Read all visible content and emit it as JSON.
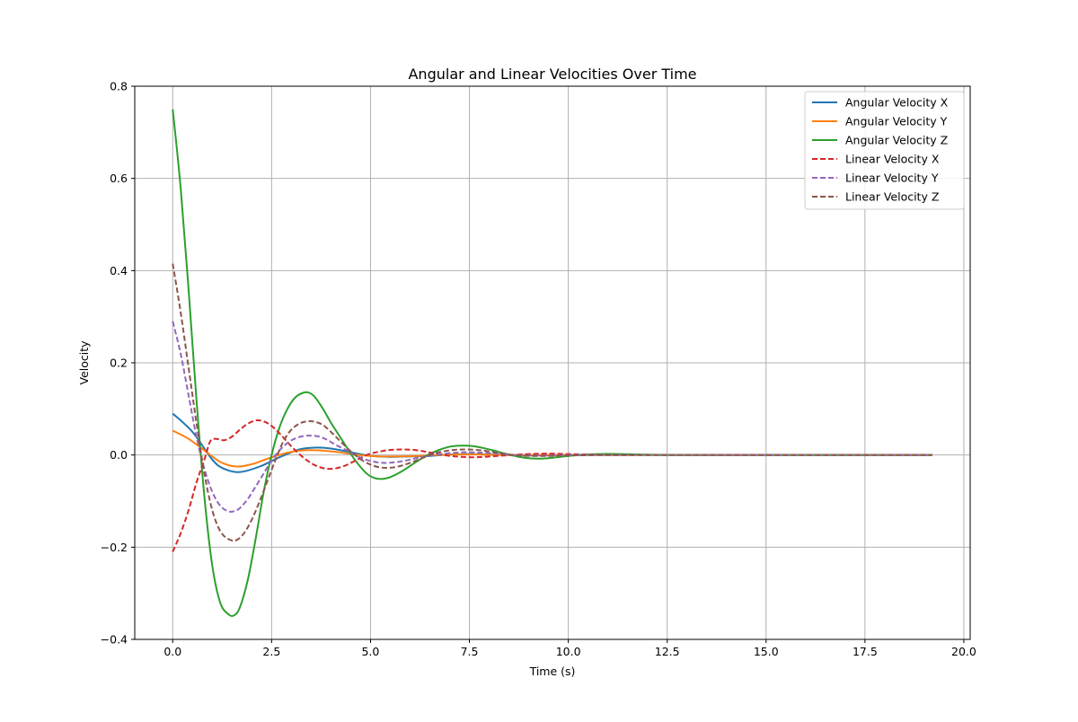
{
  "chart_data": {
    "type": "line",
    "title": "Angular and Linear Velocities Over Time",
    "xlabel": "Time (s)",
    "ylabel": "Velocity",
    "xlim": [
      -0.96,
      20.16
    ],
    "ylim": [
      -0.4,
      0.8
    ],
    "x_ticks": [
      0.0,
      2.5,
      5.0,
      7.5,
      10.0,
      12.5,
      15.0,
      17.5,
      20.0
    ],
    "x_tick_labels": [
      "0.0",
      "2.5",
      "5.0",
      "7.5",
      "10.0",
      "12.5",
      "15.0",
      "17.5",
      "20.0"
    ],
    "y_ticks": [
      -0.4,
      -0.2,
      0.0,
      0.2,
      0.4,
      0.6,
      0.8
    ],
    "y_tick_labels": [
      "−0.4",
      "−0.2",
      "0.0",
      "0.2",
      "0.4",
      "0.6",
      "0.8"
    ],
    "grid": true,
    "legend_position": "top-right",
    "series": [
      {
        "name": "Angular Velocity X",
        "color": "#1f77b4",
        "dash": "solid",
        "x": [
          0,
          0.5,
          1.0,
          1.3,
          1.7,
          2.2,
          2.7,
          3.2,
          3.6,
          4.0,
          4.5,
          5.0,
          5.5,
          6.0,
          6.5,
          7.0,
          7.5,
          8.0,
          8.5,
          9.0,
          10.0,
          11.0,
          12.0,
          14.0,
          16.0,
          19.2
        ],
        "y": [
          0.09,
          0.05,
          -0.01,
          -0.03,
          -0.037,
          -0.025,
          -0.005,
          0.012,
          0.016,
          0.014,
          0.006,
          -0.002,
          -0.004,
          -0.003,
          -0.002,
          0.001,
          0.002,
          0.001,
          0.0,
          -0.001,
          0.0,
          0.0,
          0.0,
          0.0,
          0.0,
          0.0
        ]
      },
      {
        "name": "Angular Velocity Y",
        "color": "#ff7f0e",
        "dash": "solid",
        "x": [
          0,
          0.4,
          0.8,
          1.2,
          1.6,
          2.0,
          2.4,
          2.9,
          3.3,
          3.7,
          4.2,
          4.7,
          5.2,
          5.7,
          6.2,
          6.7,
          7.2,
          7.7,
          8.2,
          9.0,
          10.0,
          12.0,
          19.2
        ],
        "y": [
          0.053,
          0.035,
          0.01,
          -0.015,
          -0.025,
          -0.02,
          -0.008,
          0.005,
          0.01,
          0.01,
          0.006,
          0.0,
          -0.003,
          -0.003,
          -0.002,
          0.0,
          0.001,
          0.001,
          0.0,
          0.0,
          0.0,
          0.0,
          0.0
        ]
      },
      {
        "name": "Angular Velocity Z",
        "color": "#2ca02c",
        "dash": "solid",
        "x": [
          0,
          0.2,
          0.4,
          0.6,
          0.8,
          1.0,
          1.2,
          1.4,
          1.55,
          1.7,
          1.9,
          2.1,
          2.3,
          2.5,
          2.7,
          2.9,
          3.1,
          3.3,
          3.45,
          3.6,
          3.8,
          4.0,
          4.3,
          4.6,
          4.9,
          5.1,
          5.3,
          5.5,
          5.8,
          6.1,
          6.4,
          6.7,
          7.0,
          7.2,
          7.5,
          7.8,
          8.1,
          8.4,
          8.7,
          9.0,
          9.3,
          9.6,
          9.9,
          10.3,
          10.8,
          11.3,
          11.8,
          12.5,
          14.0,
          16.0,
          19.2
        ],
        "y": [
          0.75,
          0.58,
          0.36,
          0.12,
          -0.09,
          -0.24,
          -0.32,
          -0.345,
          -0.348,
          -0.33,
          -0.27,
          -0.18,
          -0.08,
          0.0,
          0.06,
          0.1,
          0.125,
          0.135,
          0.135,
          0.125,
          0.1,
          0.07,
          0.03,
          -0.01,
          -0.04,
          -0.05,
          -0.052,
          -0.048,
          -0.035,
          -0.018,
          -0.002,
          0.01,
          0.018,
          0.02,
          0.02,
          0.016,
          0.01,
          0.003,
          -0.003,
          -0.007,
          -0.008,
          -0.006,
          -0.003,
          0.0,
          0.002,
          0.002,
          0.001,
          0.0,
          0.0,
          0.0,
          0.0
        ]
      },
      {
        "name": "Linear Velocity X",
        "color": "#d62728",
        "dash": "dashed",
        "x": [
          0,
          0.2,
          0.4,
          0.6,
          0.8,
          0.95,
          1.1,
          1.3,
          1.5,
          1.7,
          1.9,
          2.1,
          2.3,
          2.5,
          2.7,
          2.9,
          3.1,
          3.4,
          3.7,
          4.0,
          4.3,
          4.6,
          4.9,
          5.2,
          5.5,
          5.8,
          6.1,
          6.4,
          6.7,
          7.0,
          7.3,
          7.6,
          7.9,
          8.2,
          8.6,
          9.0,
          9.5,
          10.0,
          10.5,
          11.0,
          12.0,
          14.0,
          19.2
        ],
        "y": [
          -0.21,
          -0.17,
          -0.12,
          -0.06,
          -0.01,
          0.03,
          0.035,
          0.032,
          0.04,
          0.055,
          0.068,
          0.075,
          0.073,
          0.063,
          0.047,
          0.028,
          0.01,
          -0.012,
          -0.026,
          -0.03,
          -0.025,
          -0.013,
          0.0,
          0.007,
          0.011,
          0.012,
          0.011,
          0.007,
          0.002,
          -0.002,
          -0.004,
          -0.005,
          -0.004,
          -0.002,
          0.0,
          0.002,
          0.003,
          0.002,
          0.001,
          0.0,
          0.0,
          0.0,
          0.0
        ]
      },
      {
        "name": "Linear Velocity Y",
        "color": "#9467bd",
        "dash": "dashed",
        "x": [
          0,
          0.2,
          0.4,
          0.6,
          0.8,
          1.0,
          1.2,
          1.4,
          1.55,
          1.7,
          1.9,
          2.1,
          2.3,
          2.5,
          2.7,
          2.9,
          3.1,
          3.3,
          3.5,
          3.7,
          3.9,
          4.1,
          4.4,
          4.7,
          5.0,
          5.3,
          5.6,
          5.9,
          6.2,
          6.6,
          7.0,
          7.4,
          7.8,
          8.2,
          8.6,
          9.0,
          9.5,
          10.0,
          11.0,
          12.0,
          19.2
        ],
        "y": [
          0.29,
          0.22,
          0.13,
          0.04,
          -0.03,
          -0.08,
          -0.11,
          -0.122,
          -0.122,
          -0.115,
          -0.095,
          -0.068,
          -0.04,
          -0.012,
          0.01,
          0.026,
          0.036,
          0.041,
          0.042,
          0.04,
          0.033,
          0.023,
          0.01,
          -0.004,
          -0.013,
          -0.017,
          -0.016,
          -0.012,
          -0.006,
          0.0,
          0.004,
          0.006,
          0.005,
          0.003,
          0.0,
          -0.001,
          -0.001,
          0.0,
          0.0,
          0.0,
          0.0
        ]
      },
      {
        "name": "Linear Velocity Z",
        "color": "#8c564b",
        "dash": "dashed",
        "x": [
          0,
          0.2,
          0.4,
          0.6,
          0.8,
          1.0,
          1.2,
          1.4,
          1.6,
          1.8,
          2.0,
          2.2,
          2.4,
          2.6,
          2.8,
          3.0,
          3.2,
          3.4,
          3.6,
          3.8,
          4.0,
          4.2,
          4.5,
          4.8,
          5.1,
          5.4,
          5.7,
          6.0,
          6.3,
          6.6,
          7.0,
          7.4,
          7.8,
          8.2,
          8.6,
          9.0,
          9.5,
          10.0,
          11.0,
          12.0,
          19.2
        ],
        "y": [
          0.415,
          0.31,
          0.19,
          0.07,
          -0.04,
          -0.12,
          -0.165,
          -0.182,
          -0.185,
          -0.17,
          -0.14,
          -0.1,
          -0.055,
          -0.01,
          0.03,
          0.055,
          0.068,
          0.073,
          0.072,
          0.065,
          0.05,
          0.033,
          0.008,
          -0.012,
          -0.024,
          -0.028,
          -0.025,
          -0.017,
          -0.007,
          0.003,
          0.01,
          0.012,
          0.01,
          0.005,
          0.0,
          -0.002,
          -0.002,
          -0.001,
          0.0,
          0.0,
          0.0
        ]
      }
    ]
  }
}
